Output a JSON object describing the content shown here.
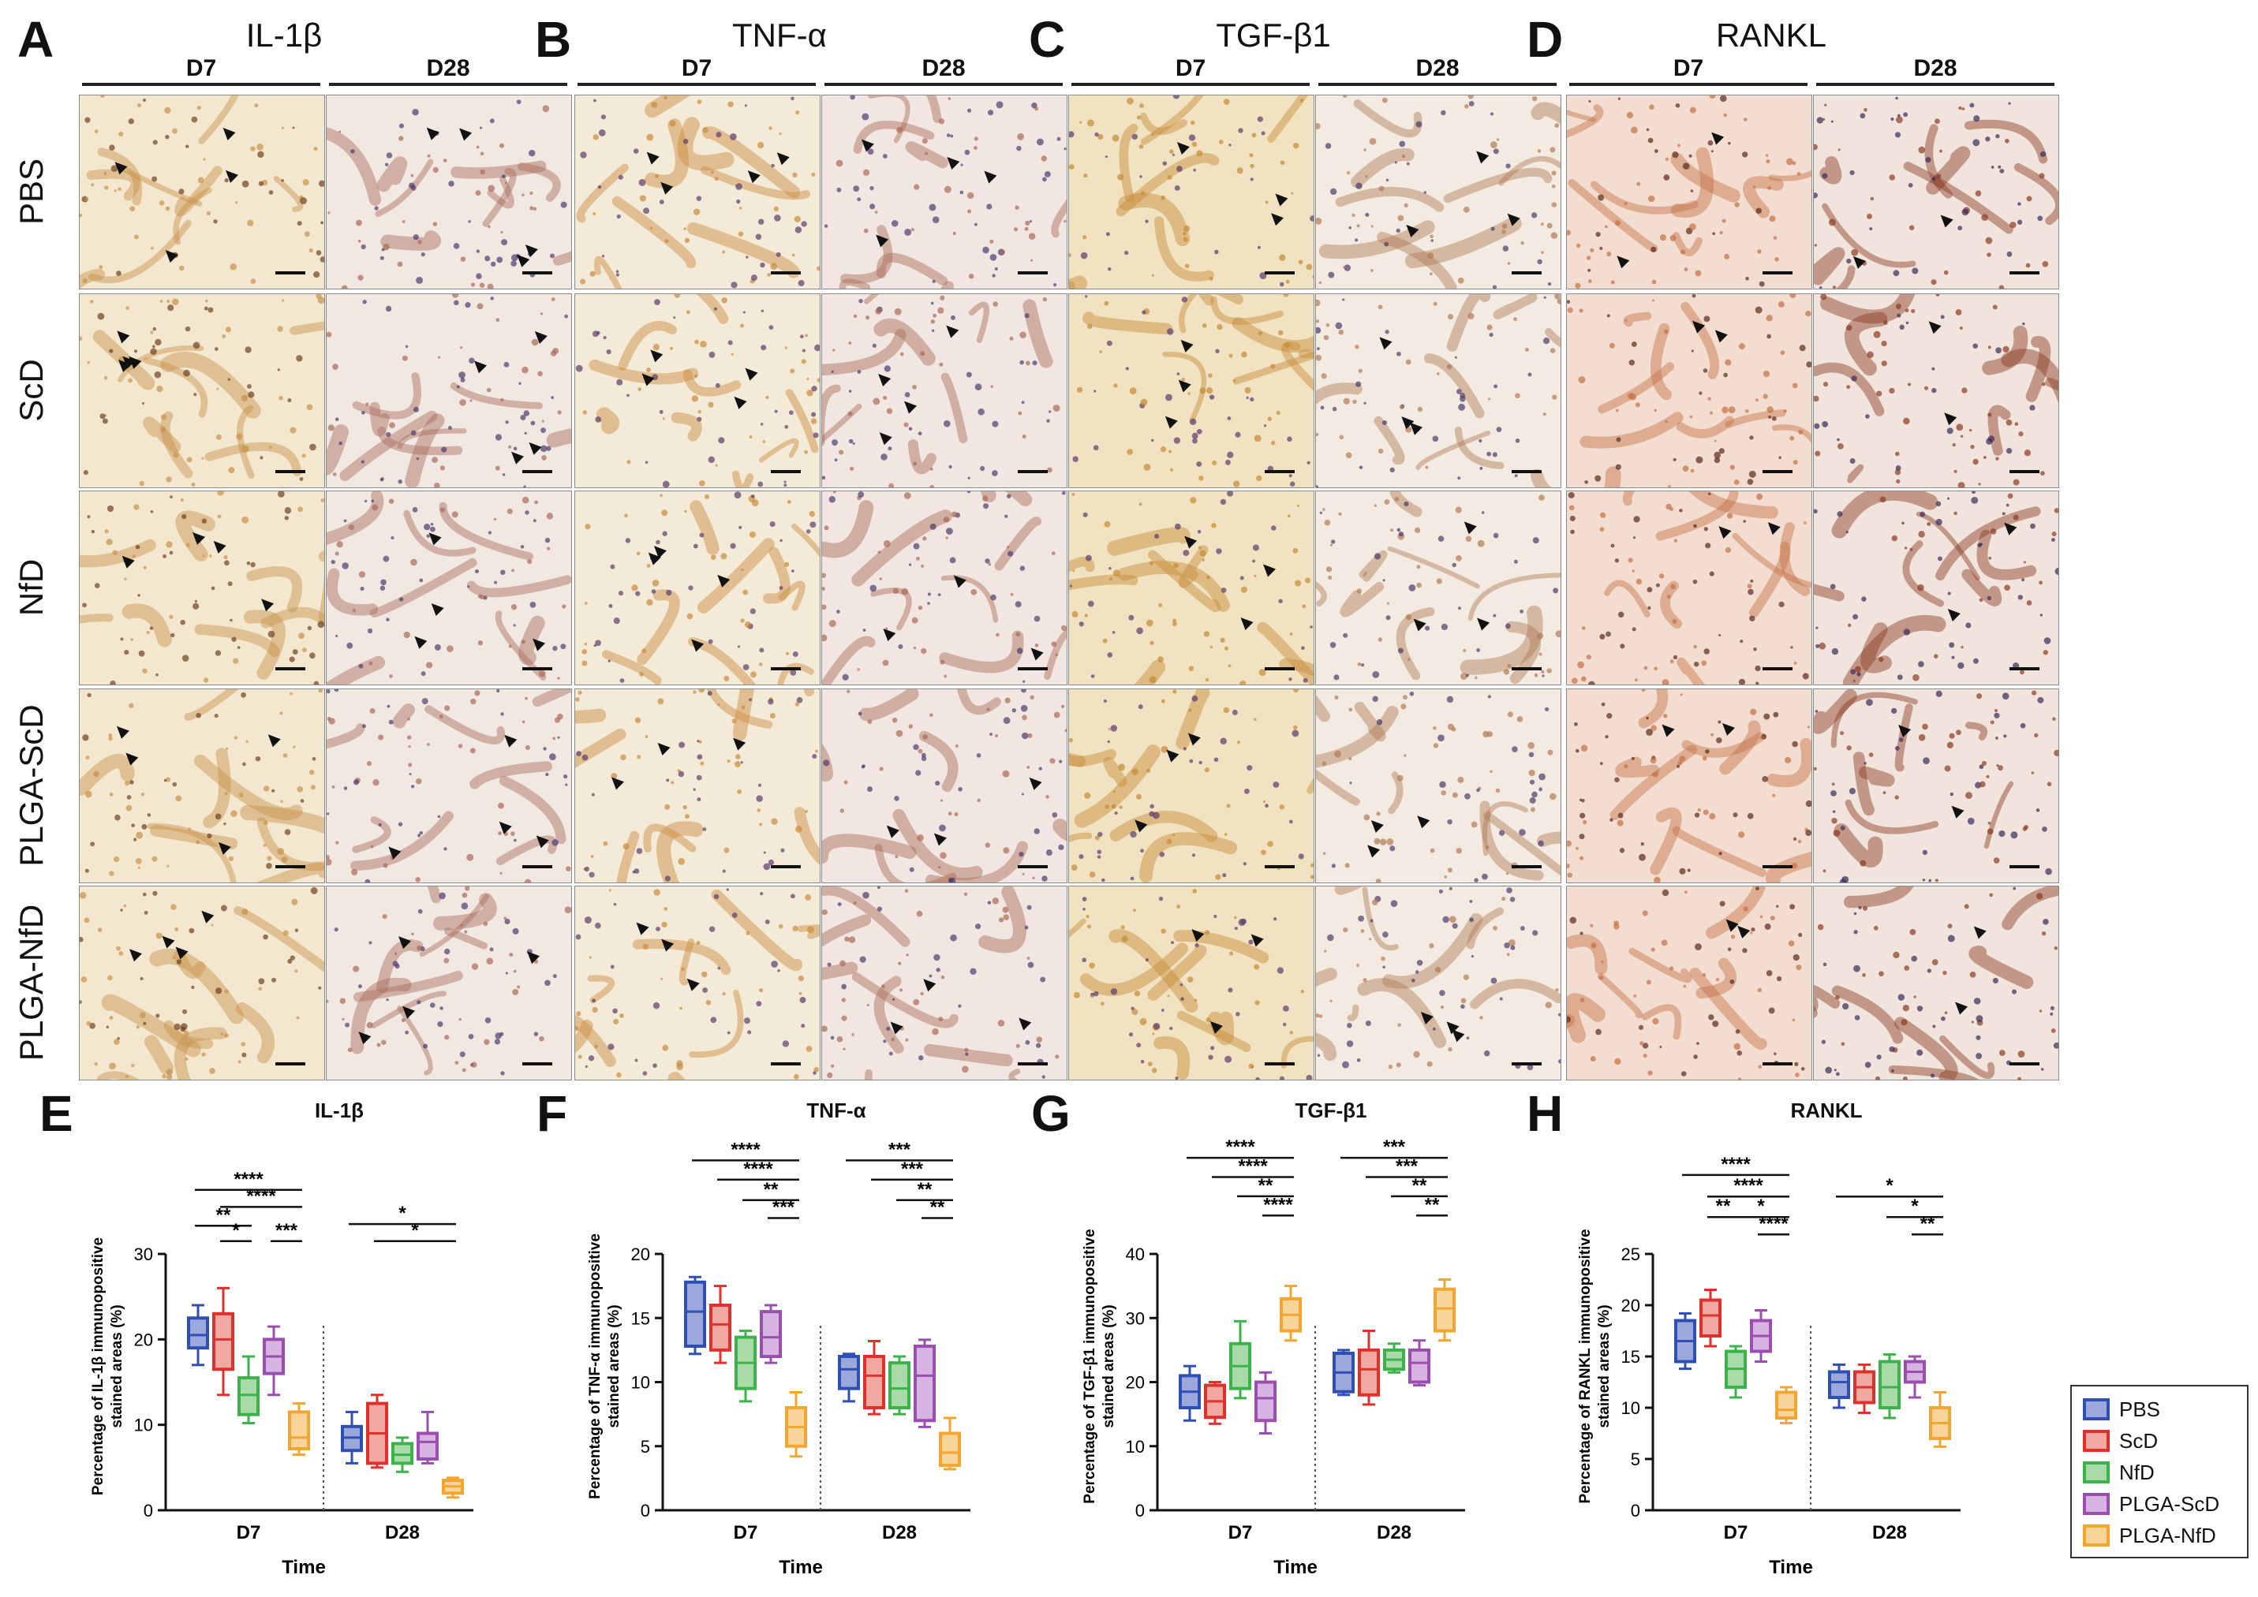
{
  "panels": [
    {
      "letter": "A",
      "marker": "IL-1β",
      "days": [
        "D7",
        "D28"
      ]
    },
    {
      "letter": "B",
      "marker": "TNF-α",
      "days": [
        "D7",
        "D28"
      ]
    },
    {
      "letter": "C",
      "marker": "TGF-β1",
      "days": [
        "D7",
        "D28"
      ]
    },
    {
      "letter": "D",
      "marker": "RANKL",
      "days": [
        "D7",
        "D28"
      ]
    }
  ],
  "rows": [
    "PBS",
    "ScD",
    "NfD",
    "PLGA-ScD",
    "PLGA-NfD"
  ],
  "legend": {
    "items": [
      {
        "label": "PBS",
        "color": "#2f4fb5",
        "fill": "#9aa8dc"
      },
      {
        "label": "ScD",
        "color": "#e0302c",
        "fill": "#f0a8a0"
      },
      {
        "label": "NfD",
        "color": "#3bb34a",
        "fill": "#a8dba8"
      },
      {
        "label": "PLGA-ScD",
        "color": "#9a4fb0",
        "fill": "#d6b3e0"
      },
      {
        "label": "PLGA-NfD",
        "color": "#f2a630",
        "fill": "#f8d49a"
      }
    ]
  },
  "chart_data": [
    {
      "letter": "E",
      "title": "IL-1β",
      "type": "box",
      "ylabel": "Percentage of IL-1β immunopositive stained areas (%)",
      "xlabel": "Time",
      "groups": [
        "D7",
        "D28"
      ],
      "ylim": [
        0,
        30
      ],
      "yticks": [
        "0",
        "10",
        "20",
        "30"
      ],
      "series": [
        {
          "name": "PBS",
          "D7": [
            17,
            19,
            20.5,
            22.5,
            24
          ],
          "D28": [
            5.5,
            7,
            8.5,
            9.8,
            11.5
          ]
        },
        {
          "name": "ScD",
          "D7": [
            13.5,
            16.5,
            20,
            23,
            26
          ],
          "D28": [
            5,
            5.5,
            9,
            12.5,
            13.5
          ]
        },
        {
          "name": "NfD",
          "D7": [
            10.2,
            11.2,
            13.5,
            15.5,
            18
          ],
          "D28": [
            4.5,
            5.5,
            6.5,
            7.8,
            8.5
          ]
        },
        {
          "name": "PLGA-ScD",
          "D7": [
            13.5,
            16,
            18,
            20,
            21.5
          ],
          "D28": [
            5.5,
            6,
            8,
            9,
            11.5
          ]
        },
        {
          "name": "PLGA-NfD",
          "D7": [
            6.5,
            7.2,
            8.5,
            11.5,
            12.5
          ],
          "D28": [
            1.5,
            2,
            2.8,
            3.5,
            3.8
          ]
        }
      ],
      "brackets": [
        {
          "from": 0,
          "to": 4,
          "label": "****",
          "y": 37.5
        },
        {
          "from": 1,
          "to": 4,
          "label": "****",
          "y": 35.5
        },
        {
          "from": 0,
          "to": 2,
          "label": "**",
          "y": 33.3
        },
        {
          "from": 1,
          "to": 2,
          "label": "*",
          "y": 31.5
        },
        {
          "from": 3,
          "to": 4,
          "label": "***",
          "y": 31.5
        },
        {
          "from": 5,
          "to": 9,
          "label": "*",
          "y": 33.5
        },
        {
          "from": 6,
          "to": 9,
          "label": "*",
          "y": 31.5
        }
      ]
    },
    {
      "letter": "F",
      "title": "TNF-α",
      "type": "box",
      "ylabel": "Percentage of TNF-α immunopositive stained areas (%)",
      "xlabel": "Time",
      "groups": [
        "D7",
        "D28"
      ],
      "ylim": [
        0,
        20
      ],
      "yticks": [
        "0",
        "5",
        "10",
        "15",
        "20"
      ],
      "series": [
        {
          "name": "PBS",
          "D7": [
            12.2,
            12.8,
            15.5,
            17.8,
            18.2
          ],
          "D28": [
            8.5,
            9.5,
            11,
            12,
            12.2
          ]
        },
        {
          "name": "ScD",
          "D7": [
            11.5,
            12.5,
            14.5,
            16,
            17.5
          ],
          "D28": [
            7.5,
            8,
            10.5,
            12,
            13.2
          ]
        },
        {
          "name": "NfD",
          "D7": [
            8.5,
            9.5,
            11.5,
            13.5,
            14
          ],
          "D28": [
            7.5,
            8,
            9.5,
            11.5,
            12
          ]
        },
        {
          "name": "PLGA-ScD",
          "D7": [
            11.5,
            12,
            13.5,
            15.5,
            16
          ],
          "D28": [
            6.5,
            7,
            10.5,
            12.8,
            13.3
          ]
        },
        {
          "name": "PLGA-NfD",
          "D7": [
            4.2,
            5,
            6.5,
            8,
            9.2
          ],
          "D28": [
            3.2,
            3.5,
            4.5,
            6,
            7.2
          ]
        }
      ],
      "brackets": [
        {
          "from": 0,
          "to": 4,
          "label": "****",
          "y": 27.3
        },
        {
          "from": 1,
          "to": 4,
          "label": "****",
          "y": 25.8
        },
        {
          "from": 2,
          "to": 4,
          "label": "**",
          "y": 24.2
        },
        {
          "from": 3,
          "to": 4,
          "label": "***",
          "y": 22.8
        },
        {
          "from": 5,
          "to": 9,
          "label": "***",
          "y": 27.3
        },
        {
          "from": 6,
          "to": 9,
          "label": "***",
          "y": 25.8
        },
        {
          "from": 7,
          "to": 9,
          "label": "**",
          "y": 24.2
        },
        {
          "from": 8,
          "to": 9,
          "label": "**",
          "y": 22.8
        }
      ]
    },
    {
      "letter": "G",
      "title": "TGF-β1",
      "type": "box",
      "ylabel": "Percentage of TGF-β1 immunopositive stained areas (%)",
      "xlabel": "Time",
      "groups": [
        "D7",
        "D28"
      ],
      "ylim": [
        0,
        40
      ],
      "yticks": [
        "0",
        "10",
        "20",
        "30",
        "40"
      ],
      "series": [
        {
          "name": "PBS",
          "D7": [
            14,
            16,
            18.5,
            21,
            22.5
          ],
          "D28": [
            18,
            18.5,
            21.5,
            24.5,
            25
          ]
        },
        {
          "name": "ScD",
          "D7": [
            13.5,
            14.5,
            17,
            19.5,
            20
          ],
          "D28": [
            16.5,
            18,
            22,
            25,
            28
          ]
        },
        {
          "name": "NfD",
          "D7": [
            17.5,
            19,
            22.5,
            26,
            29.5
          ],
          "D28": [
            21.5,
            22,
            23.5,
            25,
            26
          ]
        },
        {
          "name": "PLGA-ScD",
          "D7": [
            12,
            14,
            17.5,
            20,
            21.5
          ],
          "D28": [
            19.5,
            20,
            23,
            25,
            26.5
          ]
        },
        {
          "name": "PLGA-NfD",
          "D7": [
            26.5,
            28,
            30.5,
            33,
            35
          ],
          "D28": [
            26.5,
            28,
            31.5,
            34.5,
            36
          ]
        }
      ],
      "brackets": [
        {
          "from": 0,
          "to": 4,
          "label": "****",
          "y": 55
        },
        {
          "from": 1,
          "to": 4,
          "label": "****",
          "y": 52
        },
        {
          "from": 2,
          "to": 4,
          "label": "**",
          "y": 49
        },
        {
          "from": 3,
          "to": 4,
          "label": "****",
          "y": 46
        },
        {
          "from": 5,
          "to": 9,
          "label": "***",
          "y": 55
        },
        {
          "from": 6,
          "to": 9,
          "label": "***",
          "y": 52
        },
        {
          "from": 7,
          "to": 9,
          "label": "**",
          "y": 49
        },
        {
          "from": 8,
          "to": 9,
          "label": "**",
          "y": 46
        }
      ]
    },
    {
      "letter": "H",
      "title": "RANKL",
      "type": "box",
      "ylabel": "Percentage of RANKL immunopositive stained areas (%)",
      "xlabel": "Time",
      "groups": [
        "D7",
        "D28"
      ],
      "ylim": [
        0,
        25
      ],
      "yticks": [
        "0",
        "5",
        "10",
        "15",
        "20",
        "25"
      ],
      "series": [
        {
          "name": "PBS",
          "D7": [
            13.8,
            14.5,
            16.5,
            18.5,
            19.2
          ],
          "D28": [
            10,
            11,
            12.5,
            13.5,
            14.2
          ]
        },
        {
          "name": "ScD",
          "D7": [
            16,
            17,
            19,
            20.5,
            21.5
          ],
          "D28": [
            9.5,
            10.5,
            12,
            13.5,
            14.2
          ]
        },
        {
          "name": "NfD",
          "D7": [
            11,
            12,
            13.8,
            15.5,
            16
          ],
          "D28": [
            9,
            10,
            12,
            14.5,
            15.2
          ]
        },
        {
          "name": "PLGA-ScD",
          "D7": [
            14.5,
            15.5,
            17,
            18.5,
            19.5
          ],
          "D28": [
            11,
            12.5,
            13.5,
            14.5,
            15
          ]
        },
        {
          "name": "PLGA-NfD",
          "D7": [
            8.5,
            9,
            9.8,
            11.5,
            12
          ],
          "D28": [
            6.2,
            7,
            8.5,
            10,
            11.5
          ]
        }
      ],
      "brackets": [
        {
          "from": 0,
          "to": 4,
          "label": "****",
          "y": 32.7
        },
        {
          "from": 1,
          "to": 4,
          "label": "****",
          "y": 30.6
        },
        {
          "from": 1,
          "to": 2,
          "label": "**",
          "y": 28.6
        },
        {
          "from": 2,
          "to": 4,
          "label": "*",
          "y": 28.6
        },
        {
          "from": 3,
          "to": 4,
          "label": "****",
          "y": 26.9
        },
        {
          "from": 5,
          "to": 9,
          "label": "*",
          "y": 30.6
        },
        {
          "from": 7,
          "to": 9,
          "label": "*",
          "y": 28.6
        },
        {
          "from": 8,
          "to": 9,
          "label": "**",
          "y": 26.9
        }
      ]
    }
  ]
}
